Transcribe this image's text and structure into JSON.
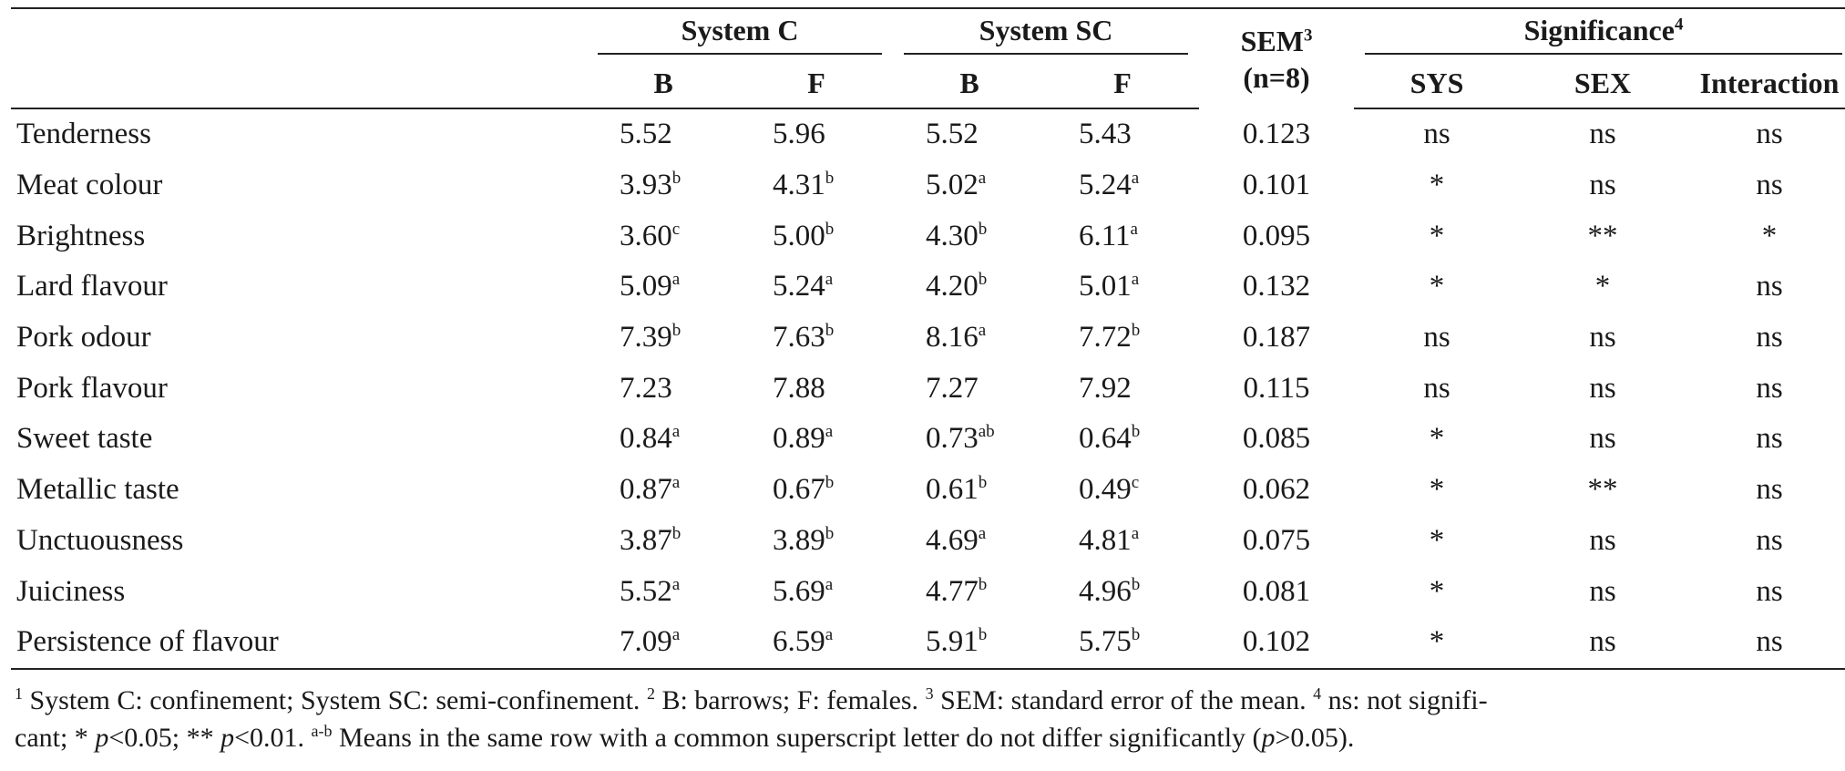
{
  "header": {
    "group_c": "System C",
    "group_sc": "System SC",
    "sem_label": "SEM",
    "sem_sup": "3",
    "sem_n": "(n=8)",
    "significance": "Significance",
    "significance_sup": "4",
    "col_b": "B",
    "col_f": "F",
    "col_sys": "SYS",
    "col_sex": "SEX",
    "col_interaction": "Interaction"
  },
  "rows": [
    {
      "attr": "Tenderness",
      "cb": "5.52",
      "cb_s": "",
      "cf": "5.96",
      "cf_s": "",
      "scb": "5.52",
      "scb_s": "",
      "scf": "5.43",
      "scf_s": "",
      "sem": "0.123",
      "sys": "ns",
      "sex": "ns",
      "int": "ns"
    },
    {
      "attr": "Meat colour",
      "cb": "3.93",
      "cb_s": "b",
      "cf": "4.31",
      "cf_s": "b",
      "scb": "5.02",
      "scb_s": "a",
      "scf": "5.24",
      "scf_s": "a",
      "sem": "0.101",
      "sys": "*",
      "sex": "ns",
      "int": "ns"
    },
    {
      "attr": "Brightness",
      "cb": "3.60",
      "cb_s": "c",
      "cf": "5.00",
      "cf_s": "b",
      "scb": "4.30",
      "scb_s": "b",
      "scf": "6.11",
      "scf_s": "a",
      "sem": "0.095",
      "sys": "*",
      "sex": "**",
      "int": "*"
    },
    {
      "attr": "Lard flavour",
      "cb": "5.09",
      "cb_s": "a",
      "cf": "5.24",
      "cf_s": "a",
      "scb": "4.20",
      "scb_s": "b",
      "scf": "5.01",
      "scf_s": "a",
      "sem": "0.132",
      "sys": "*",
      "sex": "*",
      "int": "ns"
    },
    {
      "attr": "Pork odour",
      "cb": "7.39",
      "cb_s": "b",
      "cf": "7.63",
      "cf_s": "b",
      "scb": "8.16",
      "scb_s": "a",
      "scf": "7.72",
      "scf_s": "b",
      "sem": "0.187",
      "sys": "ns",
      "sex": "ns",
      "int": "ns"
    },
    {
      "attr": "Pork flavour",
      "cb": "7.23",
      "cb_s": "",
      "cf": "7.88",
      "cf_s": "",
      "scb": "7.27",
      "scb_s": "",
      "scf": "7.92",
      "scf_s": "",
      "sem": "0.115",
      "sys": "ns",
      "sex": "ns",
      "int": "ns"
    },
    {
      "attr": "Sweet taste",
      "cb": "0.84",
      "cb_s": "a",
      "cf": "0.89",
      "cf_s": "a",
      "scb": "0.73",
      "scb_s": "ab",
      "scf": "0.64",
      "scf_s": "b",
      "sem": "0.085",
      "sys": "*",
      "sex": "ns",
      "int": "ns"
    },
    {
      "attr": "Metallic taste",
      "cb": "0.87",
      "cb_s": "a",
      "cf": "0.67",
      "cf_s": "b",
      "scb": "0.61",
      "scb_s": "b",
      "scf": "0.49",
      "scf_s": "c",
      "sem": "0.062",
      "sys": "*",
      "sex": "**",
      "int": "ns"
    },
    {
      "attr": "Unctuousness",
      "cb": "3.87",
      "cb_s": "b",
      "cf": "3.89",
      "cf_s": "b",
      "scb": "4.69",
      "scb_s": "a",
      "scf": "4.81",
      "scf_s": "a",
      "sem": "0.075",
      "sys": "*",
      "sex": "ns",
      "int": "ns"
    },
    {
      "attr": "Juiciness",
      "cb": "5.52",
      "cb_s": "a",
      "cf": "5.69",
      "cf_s": "a",
      "scb": "4.77",
      "scb_s": "b",
      "scf": "4.96",
      "scf_s": "b",
      "sem": "0.081",
      "sys": "*",
      "sex": "ns",
      "int": "ns"
    },
    {
      "attr": "Persistence of flavour",
      "cb": "7.09",
      "cb_s": "a",
      "cf": "6.59",
      "cf_s": "a",
      "scb": "5.91",
      "scb_s": "b",
      "scf": "5.75",
      "scf_s": "b",
      "sem": "0.102",
      "sys": "*",
      "sex": "ns",
      "int": "ns"
    }
  ],
  "footnote": {
    "s1": "1",
    "t1": " System C: confinement; System SC: semi-confinement. ",
    "s2": "2",
    "t2": " B: barrows; F: females. ",
    "s3": "3",
    "t3": " SEM: standard error of the mean. ",
    "s4": "4",
    "t4a": " ns: not signifi-",
    "t4b": "cant; * ",
    "p1": "p",
    "t5": "<0.05; ** ",
    "p2": "p",
    "t6": "<0.01. ",
    "s5": "a-b",
    "t7": " Means in the same row with a common superscript letter do not differ significantly (",
    "p3": "p",
    "t8": ">0.05)."
  }
}
